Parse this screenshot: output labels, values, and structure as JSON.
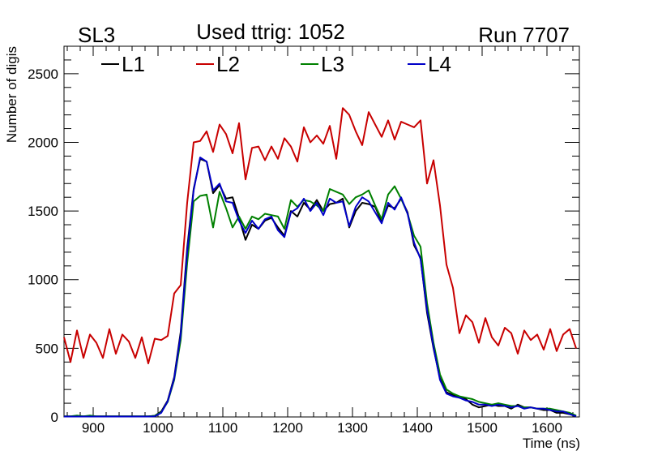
{
  "header": {
    "left_label": "SL3",
    "center_label": "Used ttrig: 1052",
    "right_label": "Run 7707"
  },
  "chart_data": {
    "type": "line",
    "title": "Used ttrig: 1052",
    "xlabel": "Time (ns)",
    "ylabel": "Number of digis",
    "xlim": [
      855,
      1650
    ],
    "ylim": [
      0,
      2700
    ],
    "xticks": [
      900,
      1000,
      1100,
      1200,
      1300,
      1400,
      1500,
      1600
    ],
    "yticks": [
      0,
      500,
      1000,
      1500,
      2000,
      2500
    ],
    "grid": false,
    "legend_position": "top",
    "x": [
      855,
      865,
      875,
      885,
      895,
      905,
      915,
      925,
      935,
      945,
      955,
      965,
      975,
      985,
      995,
      1005,
      1015,
      1025,
      1035,
      1045,
      1055,
      1065,
      1075,
      1085,
      1095,
      1105,
      1115,
      1125,
      1135,
      1145,
      1155,
      1165,
      1175,
      1185,
      1195,
      1205,
      1215,
      1225,
      1235,
      1245,
      1255,
      1265,
      1275,
      1285,
      1295,
      1305,
      1315,
      1325,
      1335,
      1345,
      1355,
      1365,
      1375,
      1385,
      1395,
      1405,
      1415,
      1425,
      1435,
      1445,
      1455,
      1465,
      1475,
      1485,
      1495,
      1505,
      1515,
      1525,
      1535,
      1545,
      1555,
      1565,
      1575,
      1585,
      1595,
      1605,
      1615,
      1625,
      1635,
      1645
    ],
    "series": [
      {
        "name": "L1",
        "color": "#000000",
        "values": [
          5,
          5,
          5,
          5,
          5,
          5,
          5,
          5,
          5,
          5,
          5,
          5,
          5,
          5,
          8,
          40,
          120,
          290,
          620,
          1230,
          1660,
          1880,
          1860,
          1630,
          1690,
          1590,
          1600,
          1450,
          1290,
          1400,
          1370,
          1430,
          1450,
          1380,
          1320,
          1500,
          1460,
          1560,
          1510,
          1580,
          1500,
          1550,
          1560,
          1590,
          1380,
          1500,
          1560,
          1550,
          1530,
          1420,
          1540,
          1520,
          1590,
          1490,
          1250,
          1160,
          760,
          500,
          280,
          180,
          160,
          140,
          130,
          90,
          70,
          80,
          90,
          80,
          80,
          60,
          90,
          70,
          70,
          60,
          50,
          50,
          30,
          30,
          20,
          5
        ]
      },
      {
        "name": "L2",
        "color": "#c80000",
        "values": [
          580,
          400,
          630,
          430,
          600,
          540,
          430,
          640,
          460,
          600,
          550,
          430,
          580,
          390,
          570,
          560,
          590,
          900,
          960,
          1560,
          2000,
          2010,
          2080,
          1930,
          2130,
          2060,
          1920,
          2140,
          1730,
          1960,
          1970,
          1870,
          1970,
          1880,
          2030,
          1970,
          1860,
          2110,
          2000,
          2050,
          1990,
          2120,
          1880,
          2250,
          2200,
          2080,
          1980,
          2220,
          2130,
          2040,
          2160,
          2020,
          2150,
          2130,
          2110,
          2160,
          1700,
          1870,
          1540,
          1110,
          940,
          610,
          740,
          690,
          540,
          720,
          580,
          520,
          650,
          610,
          460,
          630,
          560,
          600,
          490,
          640,
          480,
          600,
          640,
          500
        ]
      },
      {
        "name": "L3",
        "color": "#008000",
        "values": [
          5,
          5,
          10,
          5,
          10,
          5,
          5,
          5,
          5,
          5,
          5,
          5,
          5,
          5,
          8,
          35,
          110,
          270,
          560,
          1120,
          1570,
          1610,
          1620,
          1380,
          1640,
          1520,
          1380,
          1460,
          1370,
          1460,
          1440,
          1480,
          1470,
          1460,
          1370,
          1580,
          1530,
          1580,
          1570,
          1540,
          1500,
          1660,
          1640,
          1620,
          1550,
          1600,
          1620,
          1650,
          1540,
          1440,
          1620,
          1680,
          1590,
          1480,
          1320,
          1240,
          830,
          540,
          310,
          200,
          170,
          150,
          140,
          130,
          110,
          100,
          90,
          100,
          90,
          80,
          80,
          70,
          70,
          60,
          60,
          60,
          50,
          40,
          30,
          10
        ]
      },
      {
        "name": "L4",
        "color": "#0000c8",
        "values": [
          3,
          3,
          3,
          3,
          3,
          3,
          3,
          3,
          3,
          3,
          3,
          3,
          3,
          3,
          5,
          30,
          115,
          280,
          600,
          1200,
          1650,
          1890,
          1860,
          1650,
          1700,
          1570,
          1560,
          1430,
          1340,
          1430,
          1370,
          1440,
          1460,
          1360,
          1310,
          1490,
          1520,
          1590,
          1500,
          1560,
          1470,
          1590,
          1560,
          1570,
          1390,
          1530,
          1600,
          1570,
          1490,
          1410,
          1560,
          1510,
          1600,
          1480,
          1270,
          1150,
          780,
          510,
          270,
          170,
          150,
          140,
          120,
          110,
          90,
          90,
          80,
          90,
          80,
          70,
          80,
          60,
          70,
          60,
          60,
          50,
          40,
          40,
          20,
          5
        ]
      }
    ]
  }
}
